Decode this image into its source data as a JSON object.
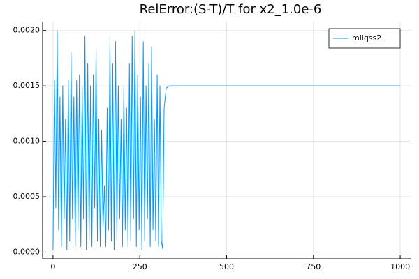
{
  "chart_data": {
    "type": "line",
    "title": "RelError:(S-T)/T for x2_1.0e-6",
    "x": [
      0,
      4,
      8,
      12,
      16,
      20,
      24,
      28,
      32,
      36,
      40,
      44,
      48,
      52,
      56,
      60,
      64,
      68,
      72,
      76,
      80,
      84,
      88,
      92,
      96,
      100,
      104,
      108,
      112,
      116,
      120,
      124,
      128,
      132,
      136,
      140,
      144,
      148,
      152,
      156,
      160,
      164,
      168,
      172,
      176,
      180,
      184,
      188,
      192,
      196,
      200,
      204,
      208,
      212,
      216,
      220,
      224,
      228,
      232,
      236,
      240,
      244,
      248,
      252,
      256,
      260,
      264,
      268,
      272,
      276,
      280,
      284,
      288,
      292,
      296,
      300,
      304,
      308,
      312,
      316,
      320,
      326,
      335,
      1000
    ],
    "series": [
      {
        "name": "mliqss2",
        "color": "#009afa",
        "values": [
          2e-05,
          0.00155,
          0.0004,
          0.002,
          0.0002,
          0.0014,
          5e-05,
          0.0015,
          0.0003,
          0.0012,
          2e-05,
          0.00155,
          0.0001,
          0.0018,
          0.0003,
          0.0014,
          5e-05,
          0.00155,
          0.0002,
          0.0016,
          5e-05,
          0.0015,
          0.0003,
          0.00195,
          2e-05,
          0.0017,
          0.0001,
          0.0015,
          5e-05,
          0.0016,
          0.0004,
          0.00185,
          0.0001,
          0.0012,
          5e-05,
          0.0011,
          0.0002,
          0.0006,
          5e-05,
          0.0013,
          0.0002,
          0.00195,
          0.0001,
          0.0017,
          2e-05,
          0.0019,
          0.0001,
          0.0015,
          0.0003,
          0.0012,
          5e-05,
          0.0015,
          0.0002,
          0.0013,
          5e-05,
          0.0017,
          0.0001,
          0.00195,
          0.0003,
          0.002,
          5e-05,
          0.0016,
          0.0002,
          0.0014,
          2e-05,
          0.0019,
          0.0001,
          0.0015,
          0.0003,
          0.0017,
          5e-05,
          0.00185,
          0.0002,
          0.0012,
          0.0001,
          0.0016,
          5e-05,
          0.0015,
          0.0001,
          3e-05,
          0.0013,
          0.00148,
          0.0015,
          0.0015
        ]
      }
    ],
    "xlim": [
      -30,
      1030
    ],
    "xticks": [
      0,
      250,
      500,
      750,
      1000
    ],
    "ylim": [
      -6e-05,
      0.00208
    ],
    "yticks": [
      {
        "value": 0,
        "label": "0.0000"
      },
      {
        "value": 0.0005,
        "label": "0.0005"
      },
      {
        "value": 0.001,
        "label": "0.0010"
      },
      {
        "value": 0.0015,
        "label": "0.0015"
      },
      {
        "value": 0.002,
        "label": "0.0020"
      }
    ],
    "grid": true,
    "legend": "top-right"
  }
}
